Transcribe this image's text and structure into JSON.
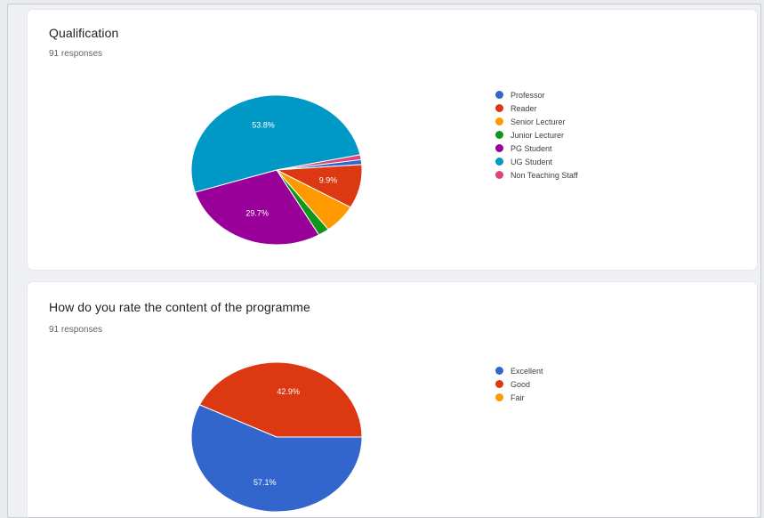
{
  "charts": [
    {
      "title": "Qualification",
      "responses": "91 responses",
      "chart_data": {
        "type": "pie",
        "labels": [
          "Professor",
          "Reader",
          "Senior Lecturer",
          "Junior Lecturer",
          "PG Student",
          "UG Student",
          "Non Teaching Staff"
        ],
        "values": [
          1.1,
          9.9,
          6.6,
          2.2,
          29.7,
          53.8,
          1.1
        ],
        "colors": [
          "#3366cc",
          "#dc3912",
          "#ff9900",
          "#109618",
          "#990099",
          "#0099c6",
          "#dd4477"
        ],
        "data_labels": [
          "",
          "9.9%",
          "",
          "",
          "29.7%",
          "53.8%",
          ""
        ],
        "legend": "right"
      }
    },
    {
      "title": "How do you rate the content of the programme",
      "responses": "91 responses",
      "chart_data": {
        "type": "pie",
        "labels": [
          "Excellent",
          "Good",
          "Fair"
        ],
        "values": [
          57.1,
          42.9,
          0
        ],
        "colors": [
          "#3366cc",
          "#dc3912",
          "#ff9900"
        ],
        "data_labels": [
          "57.1%",
          "42.9%",
          ""
        ],
        "legend": "right"
      }
    }
  ]
}
